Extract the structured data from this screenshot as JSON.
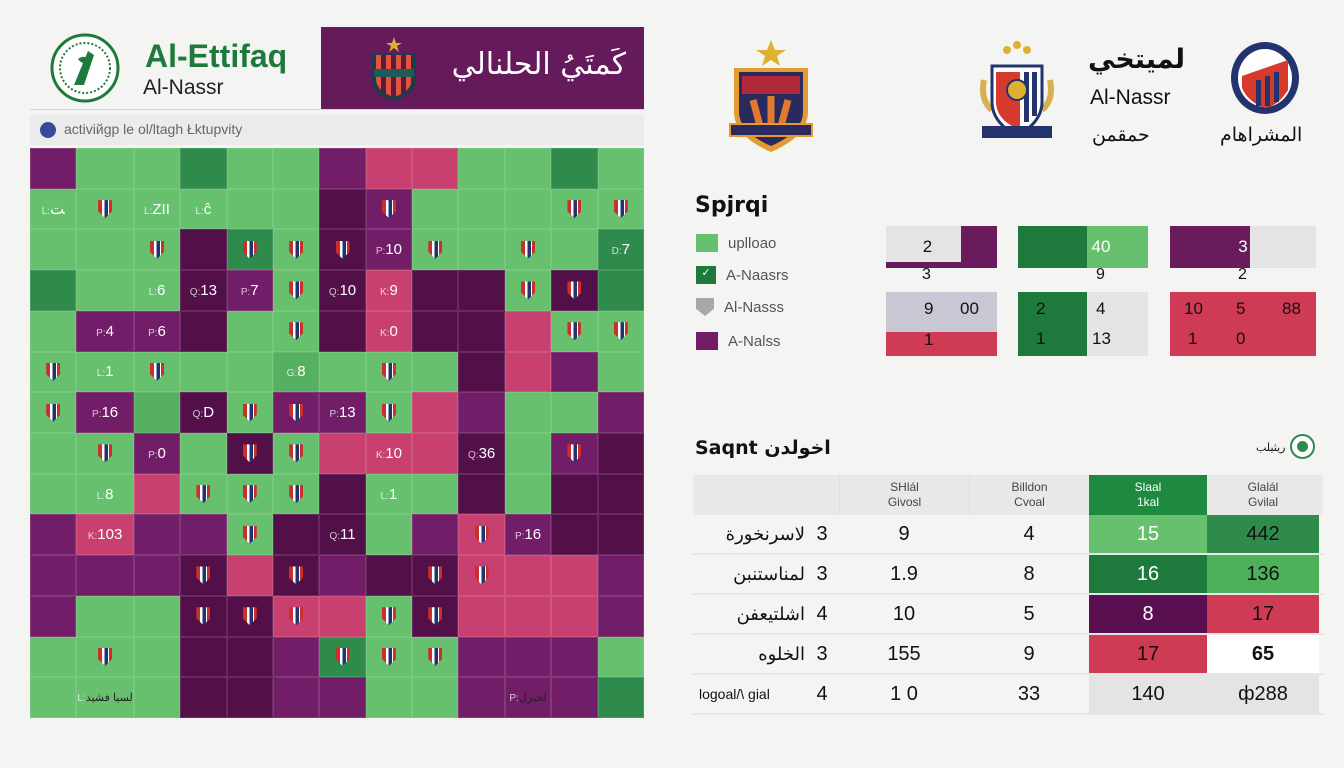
{
  "header": {
    "title": "Al-Ettifaq",
    "subtitle": "Al-Nassr",
    "banner_text": "كَمتَيُ الحلنالي",
    "activity_label": "activiйgp le ol/ltagh Łktupvity"
  },
  "colors": {
    "light_green": "#67c06e",
    "green": "#55b062",
    "dark_green": "#2e8b4c",
    "purple": "#711d67",
    "dark_purple": "#530f47",
    "pink": "#c8406f",
    "red": "#cf3a55"
  },
  "grid": {
    "rows": [
      [
        "P",
        "L",
        "L",
        "D",
        "L",
        "L",
        "P",
        "K",
        "K",
        "L",
        "L",
        "D",
        "L"
      ],
      [
        "L:ﺖ",
        "L*",
        "L:ΖΙΙ",
        "L:ĉ",
        "L",
        "L",
        "Q",
        "P*",
        "L",
        "L",
        "L",
        "L*",
        "L*"
      ],
      [
        "L",
        "L",
        "L*",
        "Q",
        "D*",
        "L*",
        "Q*",
        "P:10",
        "L*",
        "L",
        "L*",
        "L",
        "D:7"
      ],
      [
        "D",
        "L",
        "L:6",
        "Q:13",
        "P:7",
        "L*",
        "Q:10",
        "K:9",
        "Q",
        "Q",
        "L*",
        "Q*",
        "D"
      ],
      [
        "L",
        "P:4",
        "P:6",
        "Q",
        "L",
        "L*",
        "Q",
        "K:0",
        "Q",
        "Q",
        "K",
        "L*",
        "L*"
      ],
      [
        "L*",
        "L:1",
        "L*",
        "L",
        "L",
        "G:8",
        "L",
        "L*",
        "L",
        "Q",
        "K",
        "P",
        "L"
      ],
      [
        "L*",
        "P:16",
        "G",
        "Q:D",
        "L*",
        "P*",
        "P:13",
        "L*",
        "K",
        "P",
        "L",
        "L",
        "P"
      ],
      [
        "L",
        "L*",
        "P:0",
        "L",
        "Q*",
        "L*",
        "K",
        "K:10",
        "K",
        "Q:36",
        "L",
        "P*",
        "Q"
      ],
      [
        "L",
        "L:8",
        "K",
        "L*",
        "L*",
        "L*",
        "Q",
        "L:1",
        "L",
        "Q",
        "L",
        "Q",
        "Q"
      ],
      [
        "P",
        "K:103",
        "P",
        "P",
        "L*",
        "Q",
        "Q:11",
        "L",
        "P",
        "K*",
        "P:16",
        "Q",
        "Q"
      ],
      [
        "P",
        "P",
        "P",
        "Q*",
        "K",
        "Q*",
        "P",
        "Q",
        "Q*",
        "K*",
        "K",
        "K",
        "P"
      ],
      [
        "P",
        "L",
        "L",
        "Q*",
        "Q*",
        "K*",
        "K",
        "L*",
        "Q*",
        "K",
        "K",
        "K",
        "P"
      ],
      [
        "L",
        "L*",
        "L",
        "Q",
        "Q",
        "P",
        "D*",
        "L*",
        "L*",
        "P",
        "P",
        "P",
        "L"
      ],
      [
        "L",
        "L:لسيا فشيد",
        "L",
        "Q",
        "Q",
        "P",
        "P",
        "L",
        "L",
        "P",
        "P:لحبرل",
        "P",
        "D"
      ]
    ]
  },
  "top_right": {
    "team_ar": "لميتخي",
    "team_en": "Al-Nassr",
    "caption_left": "حمقمن",
    "caption_right": "المشراهام"
  },
  "legend": {
    "title": "Spjrqi",
    "items": [
      {
        "label": "uplloao",
        "color": "#67c06e"
      },
      {
        "label": "A-Naasrs",
        "color": "#1e7a3c"
      },
      {
        "label": "Al-Nasss",
        "color": "#a8a8a8"
      },
      {
        "label": "A-Nalss",
        "color": "#711d67"
      }
    ]
  },
  "scores": {
    "b1_top": "2",
    "b1_under": "3",
    "b2_top": "40",
    "b2_under": "9",
    "b3_top": "3",
    "b3_under": "2",
    "b1_r1a": "9",
    "b1_r1b": "00",
    "b1_r2": "1",
    "b2_r1a": "2",
    "b2_r1b": "4",
    "b2_r2a": "1",
    "b2_r2b": "13",
    "b3_r1a": "10",
    "b3_r1b": "5",
    "b3_r1c": "88",
    "b3_r2a": "1",
    "b3_r2b": "0"
  },
  "table": {
    "title": "Saqnt اخولدن",
    "logo_text": "ريثيلب",
    "headers": [
      "",
      "",
      "SHlál Givosl",
      "Billdon Cvoal",
      "Slaal 1kal",
      "Glalál Gvilal"
    ],
    "rows": [
      {
        "name": "لاسرنخورة",
        "a": "3",
        "b": "9",
        "c": "4",
        "d": "15",
        "e": "442"
      },
      {
        "name": "لمناستنبن",
        "a": "3",
        "b": "1.9",
        "c": "8",
        "d": "16",
        "e": "136"
      },
      {
        "name": "اشلتيعفن",
        "a": "4",
        "b": "10",
        "c": "5",
        "d": "8",
        "e": "17"
      },
      {
        "name": "الخلوه",
        "a": "3",
        "b": "155",
        "c": "9",
        "d": "17",
        "e": "65"
      },
      {
        "name": "logoal/\\ gial",
        "a": "4",
        "b": "1 0",
        "c": "33",
        "d": "140",
        "e": "ф288"
      }
    ]
  }
}
